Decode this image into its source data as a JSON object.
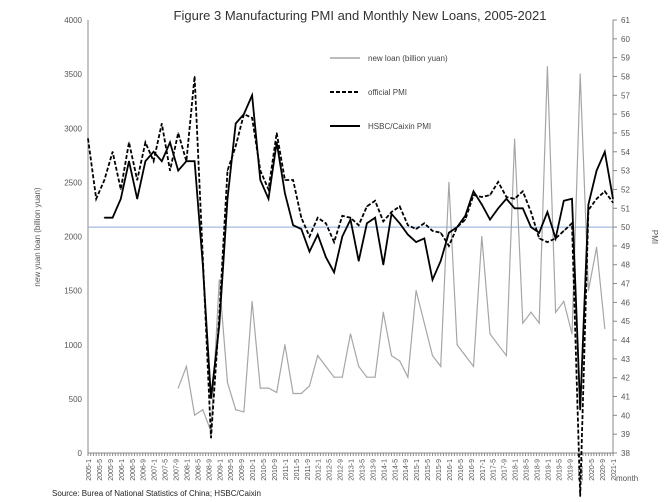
{
  "chart_data": {
    "type": "line",
    "title": "Figure 3 Manufacturing PMI and Monthly New Loans, 2005-2021",
    "xlabel": "month",
    "ylabel_left": "new yuan loan (billion yuan)",
    "ylabel_right": "PMI",
    "ylim_left": [
      0,
      4000
    ],
    "ylim_right": [
      38,
      61
    ],
    "left_ticks": [
      0,
      500,
      1000,
      1500,
      2000,
      2500,
      3000,
      3500,
      4000
    ],
    "right_ticks": [
      38,
      39,
      40,
      41,
      42,
      43,
      44,
      45,
      46,
      47,
      48,
      49,
      50,
      51,
      52,
      53,
      54,
      55,
      56,
      57,
      58,
      59,
      60,
      61
    ],
    "x_tick_labels": [
      "2005-1",
      "2005-5",
      "2005-9",
      "2006-1",
      "2006-5",
      "2006-9",
      "2007-1",
      "2007-5",
      "2007-9",
      "2008-1",
      "2008-5",
      "2008-9",
      "2009-1",
      "2009-5",
      "2009-9",
      "2010-1",
      "2010-5",
      "2010-9",
      "2011-1",
      "2011-5",
      "2011-9",
      "2012-1",
      "2012-5",
      "2012-9",
      "2013-1",
      "2013-5",
      "2013-9",
      "2014-1",
      "2014-5",
      "2014-9",
      "2015-1",
      "2015-5",
      "2015-9",
      "2016-1",
      "2016-5",
      "2016-9",
      "2017-1",
      "2017-5",
      "2017-9",
      "2018-1",
      "2018-5",
      "2018-9",
      "2019-1",
      "2019-5",
      "2019-9",
      "2020-1",
      "2020-5",
      "2020-9",
      "2021-1"
    ],
    "x_note": "series values are quarterly samples starting 2005-1 (index = quarters since 2005-1)",
    "reference_line_pmi": 50,
    "legend": [
      "new loan (billion yuan)",
      "official PMI",
      "HSBC/Caixin PMI"
    ],
    "legend_position": "top-right",
    "series": [
      {
        "name": "new loan (billion yuan)",
        "axis": "left",
        "color": "#a6a6a6",
        "start_quarter": 11,
        "values": [
          600,
          800,
          350,
          400,
          200,
          1600,
          650,
          400,
          380,
          1400,
          600,
          600,
          560,
          1000,
          550,
          550,
          620,
          900,
          800,
          700,
          700,
          1100,
          800,
          700,
          700,
          1300,
          900,
          850,
          700,
          1500,
          1200,
          900,
          800,
          2500,
          1000,
          900,
          800,
          2000,
          1100,
          1000,
          900,
          2900,
          1200,
          1300,
          1200,
          3570,
          1300,
          1400,
          1100,
          3500,
          1500,
          1900,
          1150
        ]
      },
      {
        "name": "official PMI",
        "axis": "right",
        "color": "#000000",
        "dash": true,
        "start_quarter": 0,
        "values": [
          54.7,
          51.5,
          52.5,
          54.0,
          52.0,
          54.5,
          52.5,
          54.5,
          53.5,
          55.5,
          53.0,
          55.0,
          53.5,
          58.0,
          48.4,
          38.8,
          45.3,
          53.0,
          54.3,
          56.0,
          55.8,
          53.0,
          52.0,
          55.0,
          52.5,
          52.5,
          50.5,
          49.5,
          50.5,
          50.2,
          49.2,
          50.6,
          50.5,
          50.1,
          51.1,
          51.4,
          50.3,
          50.8,
          51.1,
          50.1,
          49.9,
          50.2,
          49.8,
          49.7,
          49.0,
          50.0,
          50.4,
          51.7,
          51.6,
          51.7,
          52.4,
          51.6,
          51.5,
          51.9,
          50.8,
          49.4,
          49.2,
          49.4,
          49.8,
          50.2,
          35.7,
          50.9,
          51.5,
          51.9,
          51.3
        ]
      },
      {
        "name": "HSBC/Caixin PMI",
        "axis": "right",
        "color": "#000000",
        "dash": false,
        "start_quarter": 2,
        "values": [
          50.5,
          50.5,
          51.5,
          53.5,
          51.5,
          53.5,
          54.0,
          53.5,
          54.5,
          53.0,
          53.5,
          53.5,
          48.0,
          40.9,
          44.8,
          51.5,
          55.5,
          56.0,
          57.0,
          52.5,
          51.5,
          54.5,
          51.8,
          50.1,
          49.9,
          48.7,
          49.6,
          48.4,
          47.6,
          49.5,
          50.4,
          48.2,
          50.2,
          50.5,
          48.0,
          50.7,
          50.2,
          49.6,
          49.2,
          49.4,
          47.2,
          48.2,
          49.7,
          50.0,
          50.6,
          51.9,
          51.2,
          50.4,
          51.0,
          51.5,
          51.0,
          51.0,
          50.0,
          49.7,
          50.8,
          49.4,
          51.4,
          51.5,
          40.3,
          51.2,
          53.0,
          54.0,
          51.5
        ]
      }
    ],
    "source": "Source: Burea of National Statistics of China; HSBC/Caixin"
  }
}
